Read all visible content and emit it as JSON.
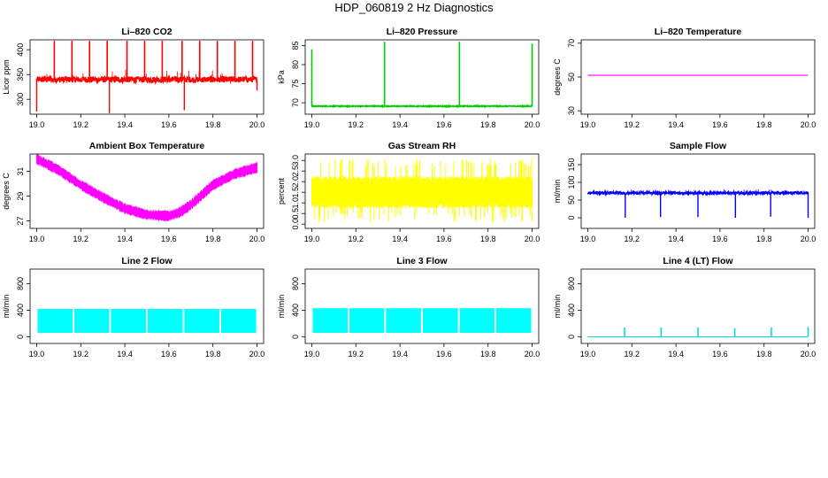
{
  "figure_title": "HDP_060819  2 Hz Diagnostics",
  "chart_data": [
    {
      "type": "line",
      "title": "Li–820 CO2",
      "ylabel": "Licor ppm",
      "color": "#ff0000",
      "xlim": [
        18.97,
        20.03
      ],
      "ylim": [
        270,
        420
      ],
      "x_ticks": [
        "19.0",
        "19.2",
        "19.4",
        "19.6",
        "19.8",
        "20.0"
      ],
      "y_ticks": [
        "300",
        "350",
        "400"
      ],
      "baseline": 340,
      "noise": 6,
      "trend": null,
      "spikes_up": [
        {
          "x": 19.08,
          "y": 418
        },
        {
          "x": 19.16,
          "y": 418
        },
        {
          "x": 19.24,
          "y": 418
        },
        {
          "x": 19.32,
          "y": 418
        },
        {
          "x": 19.41,
          "y": 418
        },
        {
          "x": 19.49,
          "y": 418
        },
        {
          "x": 19.57,
          "y": 418
        },
        {
          "x": 19.66,
          "y": 418
        },
        {
          "x": 19.74,
          "y": 418
        },
        {
          "x": 19.82,
          "y": 418
        },
        {
          "x": 19.9,
          "y": 418
        },
        {
          "x": 19.98,
          "y": 418
        }
      ],
      "spikes_down": [
        {
          "x": 19.0,
          "y": 275
        },
        {
          "x": 19.33,
          "y": 272
        },
        {
          "x": 19.67,
          "y": 278
        },
        {
          "x": 20.0,
          "y": 318
        }
      ]
    },
    {
      "type": "line",
      "title": "Li–820 Pressure",
      "ylabel": "kPa",
      "color": "#00cc00",
      "xlim": [
        18.97,
        20.03
      ],
      "ylim": [
        67,
        86.5
      ],
      "x_ticks": [
        "19.0",
        "19.2",
        "19.4",
        "19.6",
        "19.8",
        "20.0"
      ],
      "y_ticks": [
        "70",
        "75",
        "80",
        "85"
      ],
      "baseline": 69.1,
      "noise": 0.12,
      "trend": null,
      "spikes_up": [
        {
          "x": 19.0,
          "y": 84
        },
        {
          "x": 19.33,
          "y": 86
        },
        {
          "x": 19.67,
          "y": 86
        },
        {
          "x": 20.0,
          "y": 85.5
        }
      ],
      "spikes_down": []
    },
    {
      "type": "line",
      "title": "Li–820 Temperature",
      "ylabel": "degrees C",
      "color": "#ff00ff",
      "xlim": [
        18.97,
        20.03
      ],
      "ylim": [
        28,
        72
      ],
      "x_ticks": [
        "19.0",
        "19.2",
        "19.4",
        "19.6",
        "19.8",
        "20.0"
      ],
      "y_ticks": [
        "30",
        "50",
        "70"
      ],
      "baseline": 51,
      "noise": 0,
      "trend": null,
      "spikes_up": [],
      "spikes_down": []
    },
    {
      "type": "area",
      "title": "Ambient Box Temperature",
      "ylabel": "degrees C",
      "color": "#ff00ff",
      "xlim": [
        18.97,
        20.03
      ],
      "ylim": [
        26.4,
        32.4
      ],
      "x_ticks": [
        "19.0",
        "19.2",
        "19.4",
        "19.6",
        "19.8",
        "20.0"
      ],
      "y_ticks": [
        "27",
        "29",
        "31"
      ],
      "trend": {
        "x": [
          19.0,
          19.1,
          19.2,
          19.3,
          19.4,
          19.5,
          19.6,
          19.65,
          19.7,
          19.8,
          19.9,
          20.0
        ],
        "y": [
          32.0,
          31.1,
          29.9,
          28.9,
          28.0,
          27.5,
          27.4,
          27.7,
          28.3,
          29.9,
          30.8,
          31.3
        ]
      },
      "band": 0.6,
      "spikes_up": [],
      "spikes_down": []
    },
    {
      "type": "area",
      "title": "Gas Stream RH",
      "ylabel": "percent",
      "color": "#ffff00",
      "xlim": [
        18.97,
        20.03
      ],
      "ylim": [
        -0.2,
        3.3
      ],
      "x_ticks": [
        "19.0",
        "19.2",
        "19.4",
        "19.6",
        "19.8",
        "20.0"
      ],
      "y_ticks": [
        "0.0",
        "0.5",
        "1.0",
        "1.5",
        "2.0",
        "2.5",
        "3.0"
      ],
      "envelope": {
        "lower": 0.9,
        "upper": 2.1,
        "min": 0.05,
        "max": 3.1
      },
      "spikes_up": [],
      "spikes_down": []
    },
    {
      "type": "line",
      "title": "Sample Flow",
      "ylabel": "ml/min",
      "color": "#0000ff",
      "xlim": [
        18.97,
        20.03
      ],
      "ylim": [
        -30,
        180
      ],
      "x_ticks": [
        "19.0",
        "19.2",
        "19.4",
        "19.6",
        "19.8",
        "20.0"
      ],
      "y_ticks": [
        "0",
        "50",
        "100",
        "150"
      ],
      "baseline": 70,
      "noise": 3,
      "trend": null,
      "spikes_up": [],
      "spikes_down": [
        {
          "x": 19.17,
          "y": 0
        },
        {
          "x": 19.33,
          "y": 2
        },
        {
          "x": 19.5,
          "y": 2
        },
        {
          "x": 19.67,
          "y": 0
        },
        {
          "x": 19.83,
          "y": 3
        },
        {
          "x": 20.0,
          "y": 0
        }
      ]
    },
    {
      "type": "area",
      "title": "Line 2 Flow",
      "ylabel": "ml/min",
      "color": "#00ffff",
      "xlim": [
        18.97,
        20.03
      ],
      "ylim": [
        -100,
        1020
      ],
      "x_ticks": [
        "19.0",
        "19.2",
        "19.4",
        "19.6",
        "19.8",
        "20.0"
      ],
      "y_ticks": [
        "0",
        "400",
        "800"
      ],
      "band_range": [
        60,
        420
      ],
      "gaps": [
        19.167,
        19.333,
        19.5,
        19.667,
        19.833,
        20.0
      ]
    },
    {
      "type": "area",
      "title": "Line 3 Flow",
      "ylabel": "ml/min",
      "color": "#00ffff",
      "xlim": [
        18.97,
        20.03
      ],
      "ylim": [
        -100,
        1020
      ],
      "x_ticks": [
        "19.0",
        "19.2",
        "19.4",
        "19.6",
        "19.8",
        "20.0"
      ],
      "y_ticks": [
        "0",
        "400",
        "800"
      ],
      "band_range": [
        60,
        430
      ],
      "gaps": [
        19.167,
        19.333,
        19.5,
        19.667,
        19.833,
        20.0
      ]
    },
    {
      "type": "line",
      "title": "Line 4 (LT) Flow",
      "ylabel": "ml/min",
      "color": "#00dddd",
      "xlim": [
        18.97,
        20.03
      ],
      "ylim": [
        -100,
        1020
      ],
      "x_ticks": [
        "19.0",
        "19.2",
        "19.4",
        "19.6",
        "19.8",
        "20.0"
      ],
      "y_ticks": [
        "0",
        "400",
        "800"
      ],
      "baseline": 0,
      "noise": 0,
      "trend": null,
      "spikes_up": [
        {
          "x": 19.167,
          "y": 140
        },
        {
          "x": 19.333,
          "y": 140
        },
        {
          "x": 19.5,
          "y": 140
        },
        {
          "x": 19.667,
          "y": 130
        },
        {
          "x": 19.833,
          "y": 140
        },
        {
          "x": 20.0,
          "y": 150
        }
      ],
      "spikes_down": []
    }
  ]
}
